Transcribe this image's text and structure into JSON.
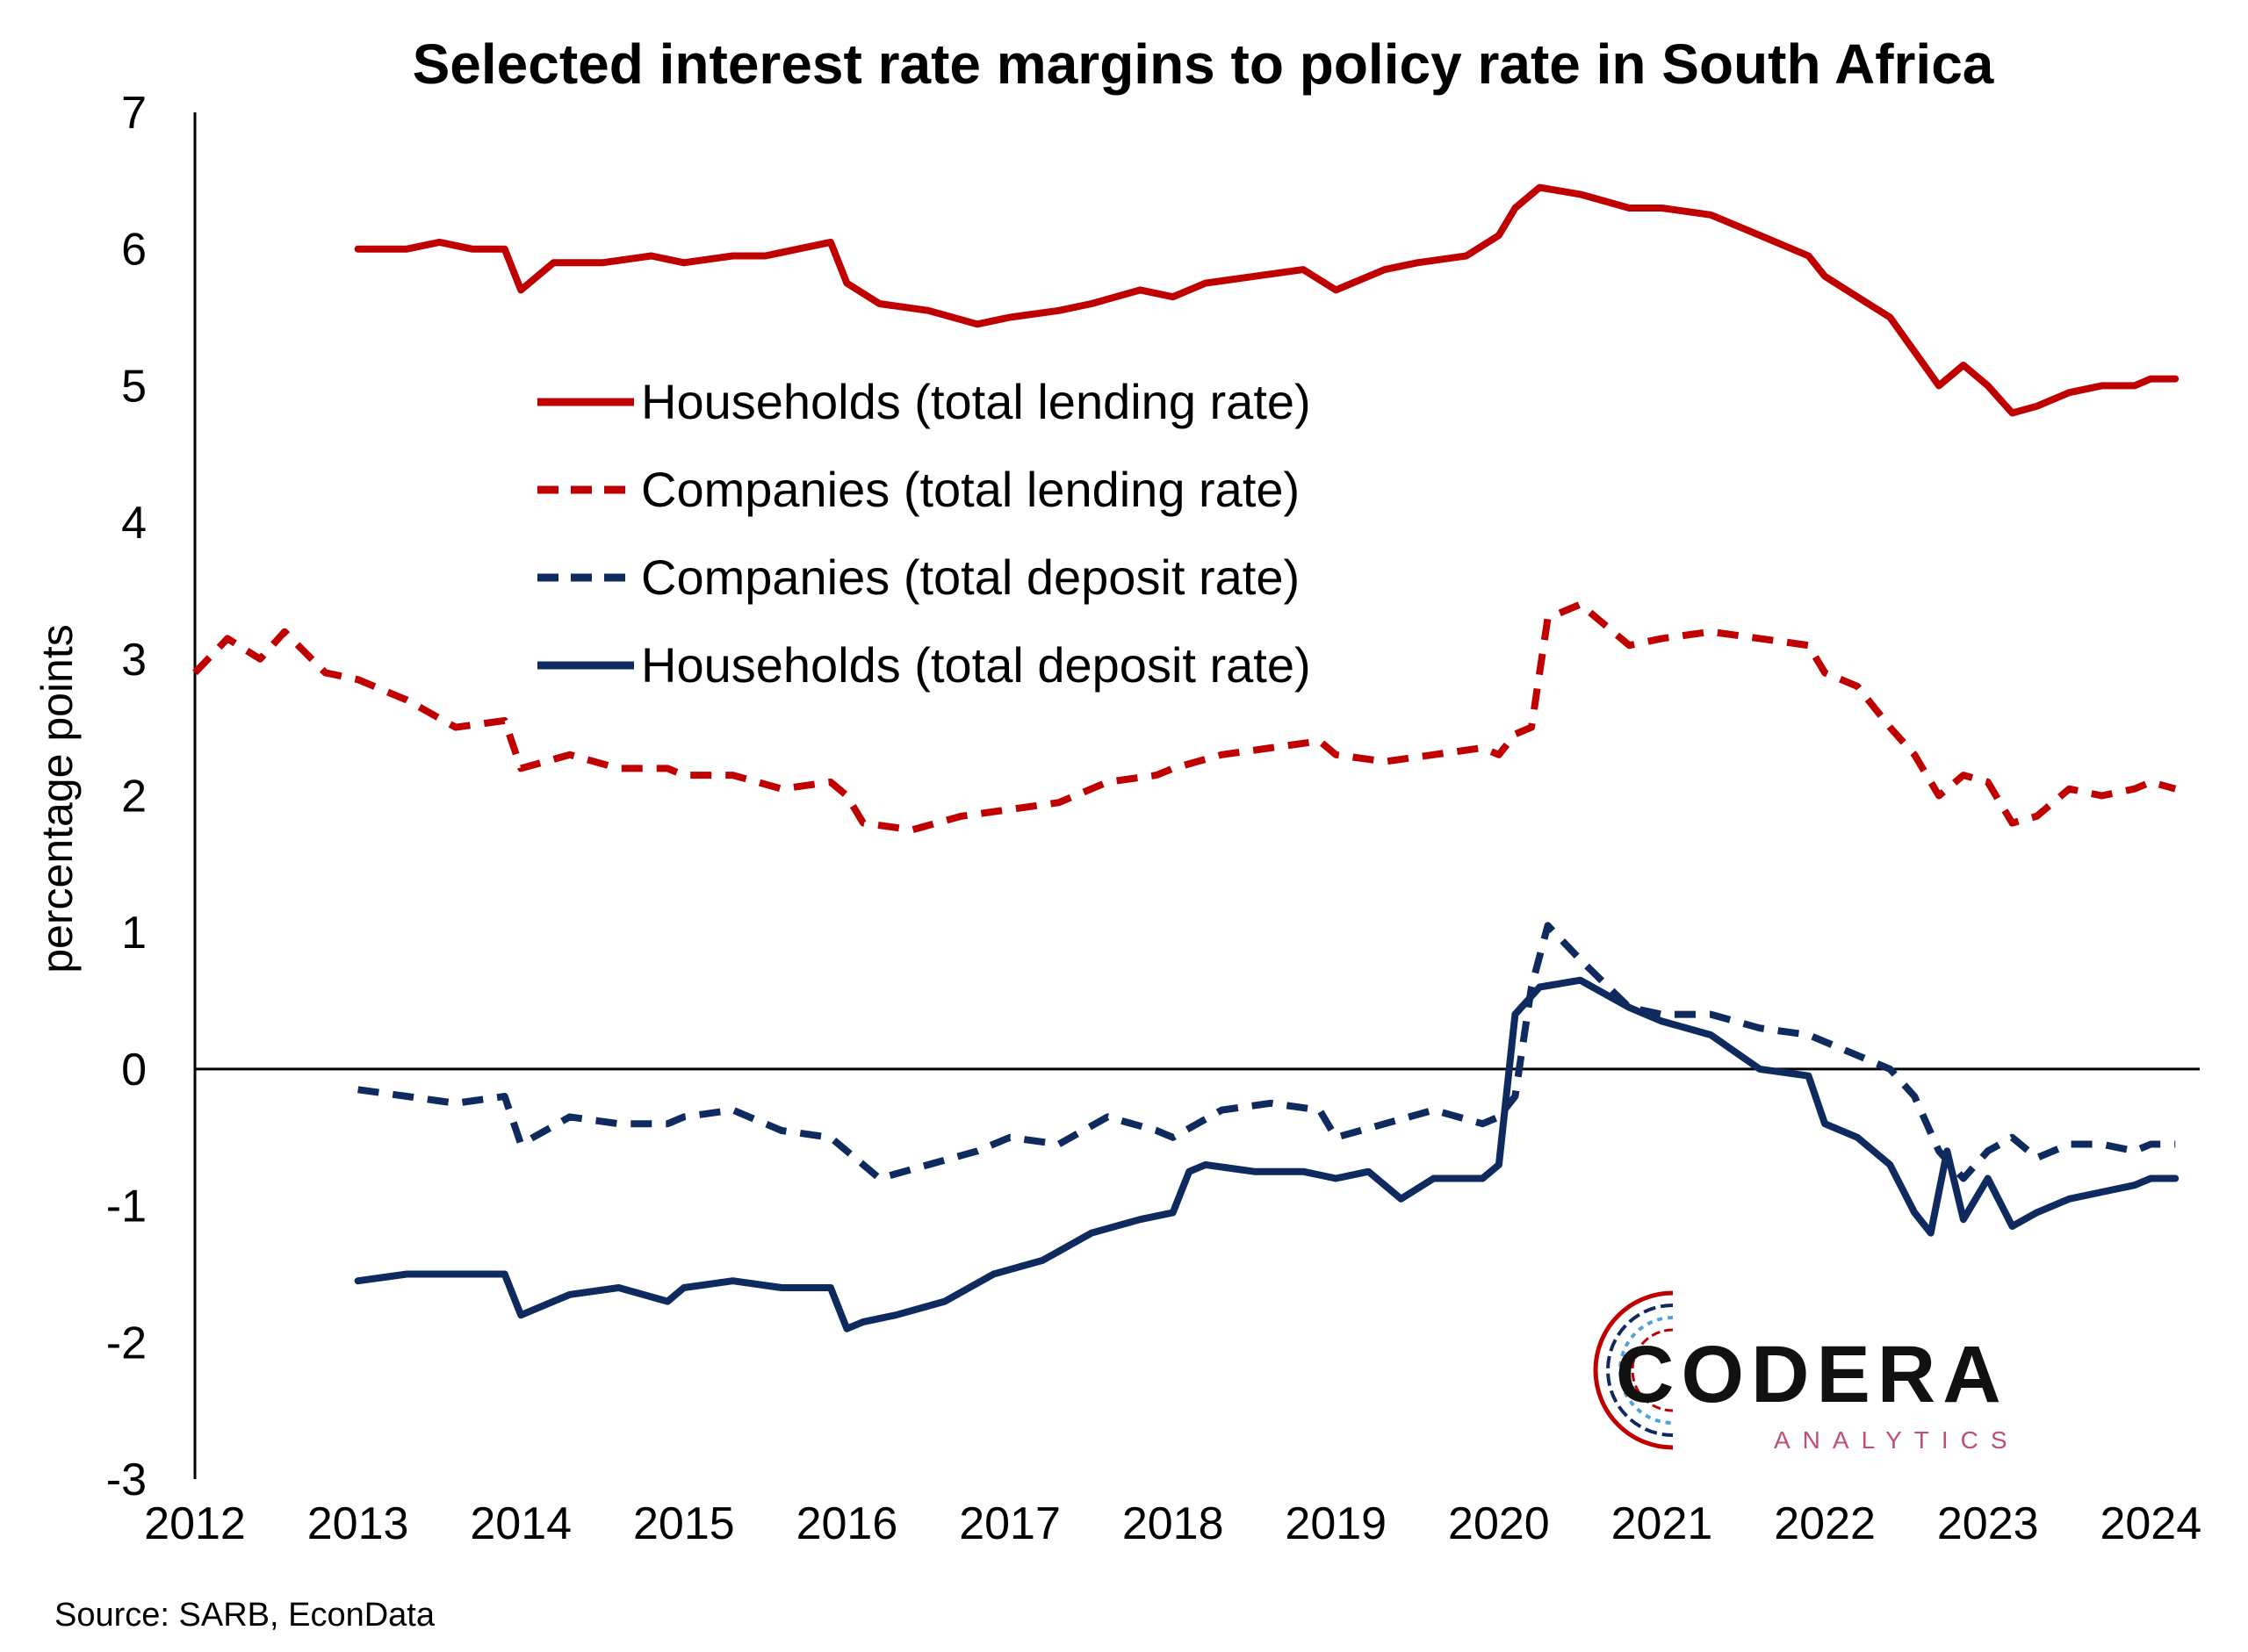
{
  "chart_data": {
    "type": "line",
    "title": "Selected interest rate margins to policy rate in South Africa",
    "xlabel": "",
    "ylabel": "percentage points",
    "xlim": [
      2012,
      2024.3
    ],
    "ylim": [
      -3,
      7
    ],
    "x_ticks": [
      "2012",
      "2013",
      "2014",
      "2015",
      "2016",
      "2017",
      "2018",
      "2019",
      "2020",
      "2021",
      "2022",
      "2023",
      "2024"
    ],
    "y_ticks": [
      "7",
      "6",
      "5",
      "4",
      "3",
      "2",
      "1",
      "0",
      "-1",
      "-2",
      "-3"
    ],
    "legend_position": "upper-center",
    "source": "Source: SARB, EconData",
    "series": [
      {
        "name": "Households (total lending rate)",
        "color": "#C00000",
        "dash": "solid",
        "x": [
          2013.0,
          2013.3,
          2013.5,
          2013.7,
          2013.9,
          2014.0,
          2014.2,
          2014.5,
          2014.8,
          2015.0,
          2015.3,
          2015.5,
          2015.7,
          2015.9,
          2016.0,
          2016.2,
          2016.5,
          2016.8,
          2017.0,
          2017.3,
          2017.5,
          2017.8,
          2018.0,
          2018.2,
          2018.5,
          2018.8,
          2019.0,
          2019.3,
          2019.5,
          2019.8,
          2020.0,
          2020.1,
          2020.25,
          2020.5,
          2020.8,
          2021.0,
          2021.3,
          2021.6,
          2021.9,
          2022.0,
          2022.2,
          2022.4,
          2022.55,
          2022.7,
          2022.85,
          2023.0,
          2023.15,
          2023.3,
          2023.5,
          2023.7,
          2023.9,
          2024.0,
          2024.15
        ],
        "values": [
          6.0,
          6.0,
          6.05,
          6.0,
          6.0,
          5.7,
          5.9,
          5.9,
          5.95,
          5.9,
          5.95,
          5.95,
          6.0,
          6.05,
          5.75,
          5.6,
          5.55,
          5.45,
          5.5,
          5.55,
          5.6,
          5.7,
          5.65,
          5.75,
          5.8,
          5.85,
          5.7,
          5.85,
          5.9,
          5.95,
          6.1,
          6.3,
          6.45,
          6.4,
          6.3,
          6.3,
          6.25,
          6.1,
          5.95,
          5.8,
          5.65,
          5.5,
          5.25,
          5.0,
          5.15,
          5.0,
          4.8,
          4.85,
          4.95,
          5.0,
          5.0,
          5.05,
          5.05
        ]
      },
      {
        "name": "Companies (total lending rate)",
        "color": "#C00000",
        "dash": "dashed",
        "x": [
          2012.0,
          2012.2,
          2012.4,
          2012.55,
          2012.8,
          2013.0,
          2013.3,
          2013.6,
          2013.9,
          2014.0,
          2014.3,
          2014.6,
          2014.9,
          2015.0,
          2015.3,
          2015.6,
          2015.9,
          2016.0,
          2016.1,
          2016.4,
          2016.7,
          2017.0,
          2017.3,
          2017.6,
          2017.9,
          2018.0,
          2018.3,
          2018.6,
          2018.9,
          2019.0,
          2019.3,
          2019.6,
          2019.9,
          2020.0,
          2020.1,
          2020.2,
          2020.3,
          2020.5,
          2020.8,
          2021.0,
          2021.3,
          2021.6,
          2021.9,
          2022.0,
          2022.2,
          2022.4,
          2022.55,
          2022.7,
          2022.85,
          2023.0,
          2023.15,
          2023.3,
          2023.5,
          2023.7,
          2023.9,
          2024.0,
          2024.15
        ],
        "values": [
          2.9,
          3.15,
          3.0,
          3.2,
          2.9,
          2.85,
          2.7,
          2.5,
          2.55,
          2.2,
          2.3,
          2.2,
          2.2,
          2.15,
          2.15,
          2.05,
          2.1,
          2.0,
          1.8,
          1.75,
          1.85,
          1.9,
          1.95,
          2.1,
          2.15,
          2.2,
          2.3,
          2.35,
          2.4,
          2.3,
          2.25,
          2.3,
          2.35,
          2.3,
          2.45,
          2.5,
          3.3,
          3.4,
          3.1,
          3.15,
          3.2,
          3.15,
          3.1,
          2.9,
          2.8,
          2.5,
          2.3,
          2.0,
          2.15,
          2.1,
          1.8,
          1.85,
          2.05,
          2.0,
          2.05,
          2.1,
          2.05
        ]
      },
      {
        "name": "Companies (total deposit rate)",
        "color": "#0E2A5F",
        "dash": "dashed",
        "x": [
          2013.0,
          2013.3,
          2013.6,
          2013.9,
          2014.0,
          2014.3,
          2014.6,
          2014.9,
          2015.0,
          2015.3,
          2015.6,
          2015.9,
          2016.0,
          2016.2,
          2016.5,
          2016.8,
          2017.0,
          2017.3,
          2017.6,
          2017.9,
          2018.0,
          2018.3,
          2018.6,
          2018.9,
          2019.0,
          2019.3,
          2019.6,
          2019.9,
          2020.0,
          2020.1,
          2020.2,
          2020.3,
          2020.5,
          2020.8,
          2021.0,
          2021.3,
          2021.6,
          2021.9,
          2022.0,
          2022.2,
          2022.4,
          2022.55,
          2022.7,
          2022.85,
          2023.0,
          2023.15,
          2023.3,
          2023.5,
          2023.7,
          2023.9,
          2024.0,
          2024.15
        ],
        "values": [
          -0.15,
          -0.2,
          -0.25,
          -0.2,
          -0.55,
          -0.35,
          -0.4,
          -0.4,
          -0.35,
          -0.3,
          -0.45,
          -0.5,
          -0.6,
          -0.8,
          -0.7,
          -0.6,
          -0.5,
          -0.55,
          -0.35,
          -0.45,
          -0.5,
          -0.3,
          -0.25,
          -0.3,
          -0.5,
          -0.4,
          -0.3,
          -0.4,
          -0.35,
          -0.2,
          0.6,
          1.05,
          0.8,
          0.45,
          0.4,
          0.4,
          0.3,
          0.25,
          0.2,
          0.1,
          0.0,
          -0.2,
          -0.6,
          -0.8,
          -0.6,
          -0.5,
          -0.65,
          -0.55,
          -0.55,
          -0.6,
          -0.55,
          -0.55
        ]
      },
      {
        "name": "Households (total deposit rate)",
        "color": "#0E2A5F",
        "dash": "solid",
        "x": [
          2013.0,
          2013.3,
          2013.6,
          2013.9,
          2014.0,
          2014.3,
          2014.6,
          2014.9,
          2015.0,
          2015.3,
          2015.6,
          2015.9,
          2016.0,
          2016.1,
          2016.3,
          2016.6,
          2016.9,
          2017.2,
          2017.5,
          2017.8,
          2018.0,
          2018.1,
          2018.2,
          2018.5,
          2018.8,
          2019.0,
          2019.2,
          2019.4,
          2019.6,
          2019.9,
          2020.0,
          2020.1,
          2020.25,
          2020.5,
          2020.8,
          2021.0,
          2021.3,
          2021.6,
          2021.9,
          2022.0,
          2022.2,
          2022.4,
          2022.55,
          2022.65,
          2022.75,
          2022.85,
          2023.0,
          2023.15,
          2023.3,
          2023.5,
          2023.7,
          2023.9,
          2024.0,
          2024.15
        ],
        "values": [
          -1.55,
          -1.5,
          -1.5,
          -1.5,
          -1.8,
          -1.65,
          -1.6,
          -1.7,
          -1.6,
          -1.55,
          -1.6,
          -1.6,
          -1.9,
          -1.85,
          -1.8,
          -1.7,
          -1.5,
          -1.4,
          -1.2,
          -1.1,
          -1.05,
          -0.75,
          -0.7,
          -0.75,
          -0.75,
          -0.8,
          -0.75,
          -0.95,
          -0.8,
          -0.8,
          -0.7,
          0.4,
          0.6,
          0.65,
          0.45,
          0.35,
          0.25,
          0.0,
          -0.05,
          -0.4,
          -0.5,
          -0.7,
          -1.05,
          -1.2,
          -0.6,
          -1.1,
          -0.8,
          -1.15,
          -1.05,
          -0.95,
          -0.9,
          -0.85,
          -0.8,
          -0.8
        ]
      }
    ]
  },
  "logo": {
    "name": "CODERA",
    "tagline": "ANALYTICS",
    "colors": [
      "#C00000",
      "#0E2A5F",
      "#4FA3D9"
    ]
  }
}
